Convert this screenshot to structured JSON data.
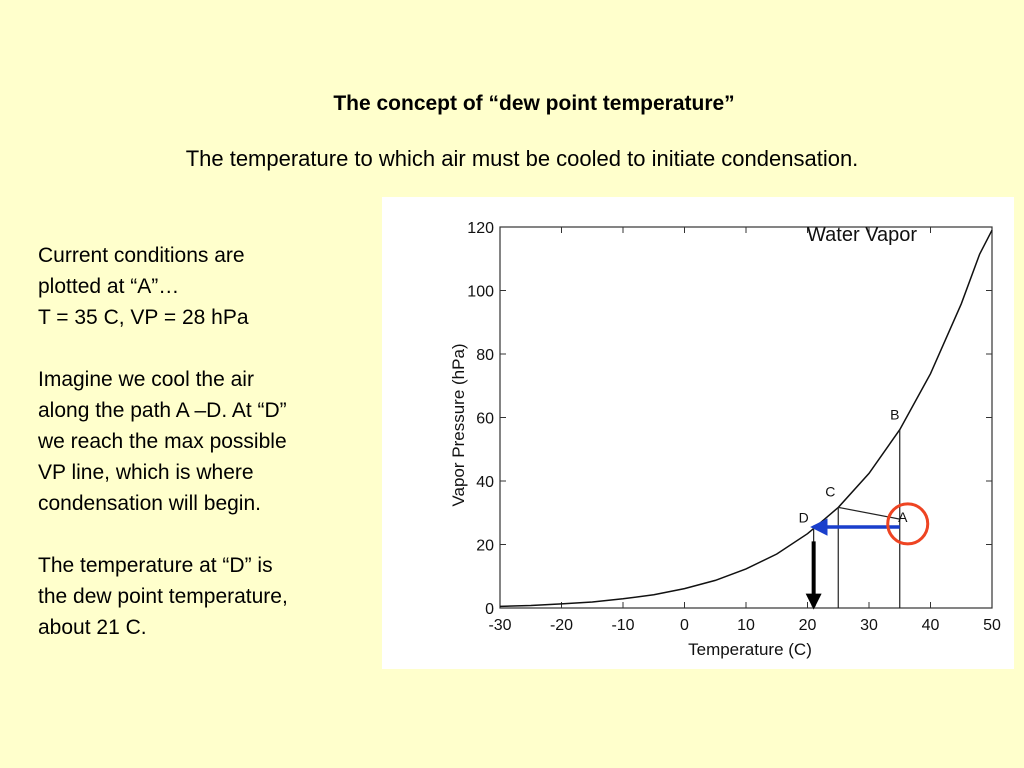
{
  "slide": {
    "title": "The concept of “dew point temperature”",
    "subtitle": "The temperature to which air must be cooled to initiate condensation.",
    "paragraphs": [
      [
        "Current conditions are",
        "plotted at “A”…",
        "T = 35 C, VP = 28 hPa"
      ],
      [
        "Imagine we cool the air",
        "along the path A –D. At “D”",
        "we reach the max possible",
        "VP line, which is where",
        "condensation will begin."
      ],
      [
        "The temperature at “D” is",
        "the dew point temperature,",
        "about 21 C."
      ]
    ]
  },
  "colors": {
    "background": "#ffffcc",
    "cooling_arrow": "#1a3fcc",
    "highlight_circle": "#ee4422",
    "dew_point_arrow": "#000000"
  },
  "chart_data": {
    "type": "line",
    "title": "Water Vapor",
    "xlabel": "Temperature (C)",
    "ylabel": "Vapor Pressure (hPa)",
    "xlim": [
      -30,
      50
    ],
    "ylim": [
      0,
      120
    ],
    "xticks": [
      -30,
      -20,
      -10,
      0,
      10,
      20,
      30,
      40,
      50
    ],
    "yticks": [
      0,
      20,
      40,
      60,
      80,
      100,
      120
    ],
    "grid": false,
    "series": [
      {
        "x": [
          -30,
          -25,
          -20,
          -15,
          -10,
          -5,
          0,
          5,
          10,
          15,
          20,
          21,
          25,
          30,
          35,
          40,
          45,
          48,
          50
        ],
        "y": [
          0.5,
          0.8,
          1.3,
          1.9,
          2.9,
          4.2,
          6.1,
          8.7,
          12.3,
          17.0,
          23.4,
          25.0,
          31.7,
          42.4,
          56.2,
          73.8,
          95.8,
          111.5,
          119.0
        ]
      }
    ],
    "points": [
      {
        "label": "A",
        "x": 35,
        "y": 28
      },
      {
        "label": "B",
        "x": 35,
        "y": 56.2
      },
      {
        "label": "C",
        "x": 25,
        "y": 31.7
      },
      {
        "label": "D",
        "x": 21,
        "y": 25
      }
    ],
    "guide_lines": [
      {
        "from": [
          35,
          0
        ],
        "to": [
          35,
          56.2
        ]
      },
      {
        "from": [
          25,
          0
        ],
        "to": [
          25,
          31.7
        ]
      },
      {
        "from": [
          21,
          0
        ],
        "to": [
          21,
          25
        ]
      },
      {
        "from": [
          35,
          28
        ],
        "to": [
          25,
          31.7
        ]
      }
    ],
    "annotations": [
      {
        "type": "arrow",
        "from": [
          35,
          25.5
        ],
        "to": [
          21,
          25.5
        ]
      },
      {
        "type": "arrow",
        "from": [
          21,
          21
        ],
        "to": [
          21,
          0.5
        ]
      },
      {
        "type": "circle",
        "center": [
          35,
          26.5
        ]
      }
    ]
  }
}
